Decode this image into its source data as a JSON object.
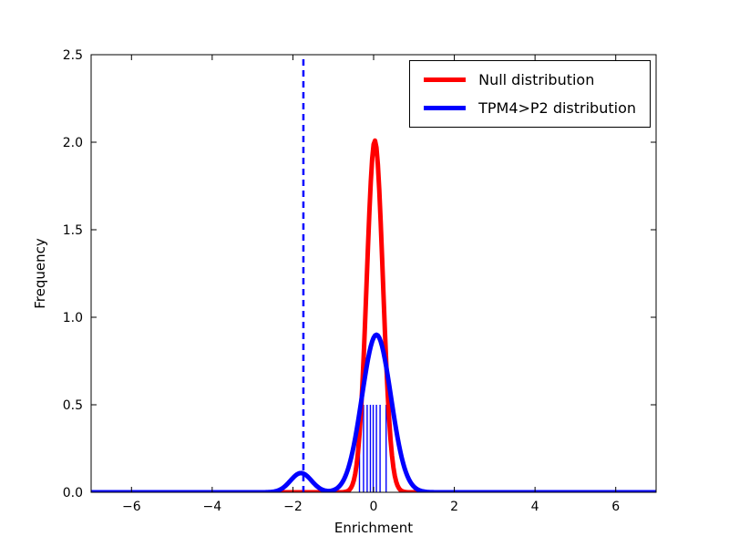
{
  "chart_data": {
    "type": "line",
    "title": "",
    "xlabel": "Enrichment",
    "ylabel": "Frequency",
    "xlim": [
      -7,
      7
    ],
    "ylim": [
      0,
      2.5
    ],
    "grid": false,
    "legend_position": "upper right",
    "xticks": [
      -6,
      -4,
      -2,
      0,
      2,
      4,
      6
    ],
    "xtick_labels": [
      "−6",
      "−4",
      "−2",
      "0",
      "2",
      "4",
      "6"
    ],
    "yticks": [
      0.0,
      0.5,
      1.0,
      1.5,
      2.0,
      2.5
    ],
    "ytick_labels": [
      "0.0",
      "0.5",
      "1.0",
      "1.5",
      "2.0",
      "2.5"
    ],
    "series": [
      {
        "name": "Null distribution",
        "color": "#ff0000",
        "style": "solid",
        "linewidth": 5,
        "model": "gaussian_mixture",
        "components": [
          {
            "center": 0.03,
            "sd": 0.2,
            "peak": 2.01
          }
        ]
      },
      {
        "name": "TPM4>P2 distribution",
        "color": "#0000ff",
        "style": "solid",
        "linewidth": 5,
        "model": "gaussian_mixture",
        "components": [
          {
            "center": 0.07,
            "sd": 0.36,
            "peak": 0.9
          },
          {
            "center": -1.8,
            "sd": 0.26,
            "peak": 0.11
          }
        ]
      }
    ],
    "vline": {
      "x": -1.74,
      "ymin": 0,
      "ymax": 2.5,
      "color": "#0000ff",
      "style": "dashed",
      "linewidth": 2.5
    },
    "rug": {
      "x": [
        -0.35,
        -0.25,
        -0.16,
        -0.08,
        -0.01,
        0.07,
        0.16,
        0.31
      ],
      "ymin": 0,
      "ymax": 0.5,
      "color": "#0000ff",
      "linewidth": 1.4
    }
  }
}
